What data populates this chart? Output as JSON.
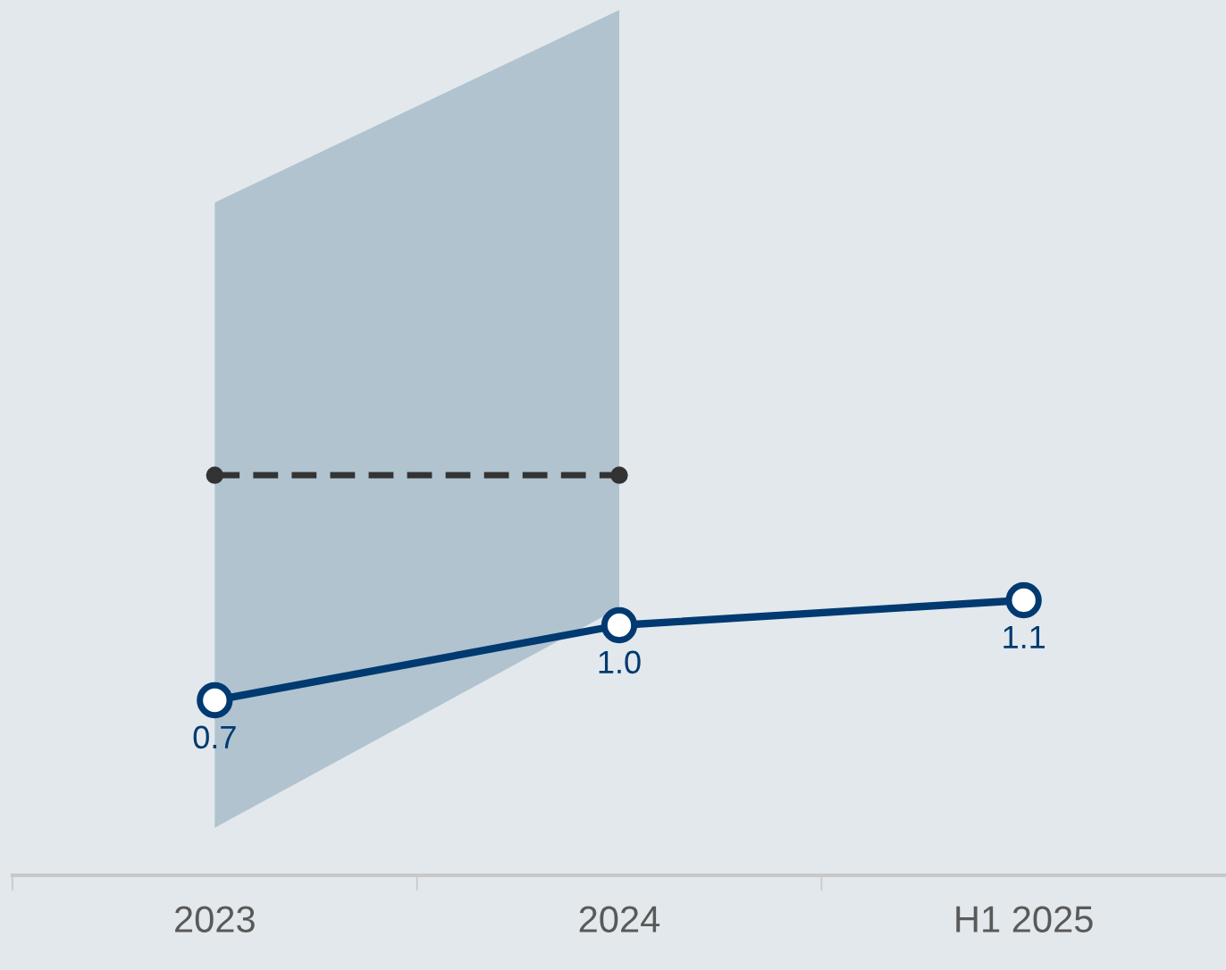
{
  "chart_data": {
    "type": "line",
    "categories": [
      "2023",
      "2024",
      "H1 2025"
    ],
    "series": [
      {
        "type": "area",
        "color": "#b0c3cf",
        "values": [
          null,
          null,
          null
        ],
        "lower": [
          0.19,
          1.07,
          null
        ],
        "upper": [
          2.69,
          3.46,
          null
        ]
      },
      {
        "color": "#333333",
        "values": [
          1.6,
          1.6,
          null
        ],
        "line_style": "dashed",
        "marker": "circle"
      },
      {
        "color": "#003a70",
        "values": [
          0.7,
          1.0,
          1.1
        ],
        "line_style": "solid",
        "marker": "circle",
        "value_labels": [
          "0.7",
          "1.0",
          "1.1"
        ]
      }
    ],
    "ylim": [
      0,
      3.5
    ],
    "tick_labels": "x",
    "grid": false,
    "legend": false
  }
}
